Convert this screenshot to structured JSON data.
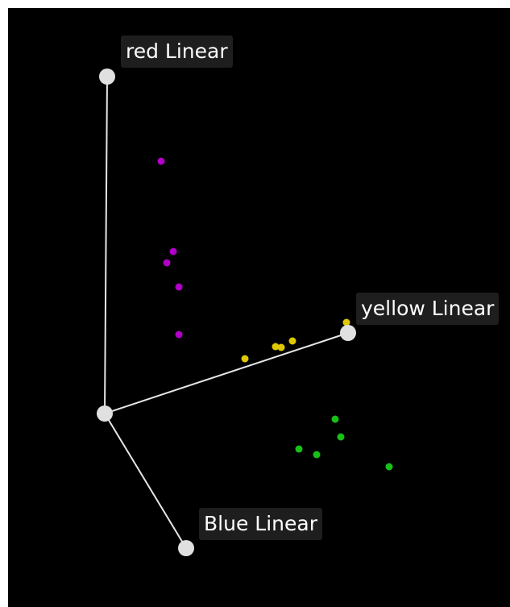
{
  "axes": {
    "red": {
      "label": "red Linear"
    },
    "yellow": {
      "label": "yellow Linear"
    },
    "blue": {
      "label": "Blue Linear"
    }
  },
  "colors": {
    "background": "#000000",
    "axis_line": "#e6e6e6",
    "handle": "#e0e0e0",
    "label_bg": "#1e1e1e",
    "label_text": "#ffffff",
    "purple_points": "#b000c8",
    "yellow_points": "#e0c800",
    "green_points": "#18c018"
  },
  "point_groups": [
    {
      "name": "purple",
      "count": 5
    },
    {
      "name": "yellow",
      "count": 5
    },
    {
      "name": "green",
      "count": 5
    }
  ]
}
